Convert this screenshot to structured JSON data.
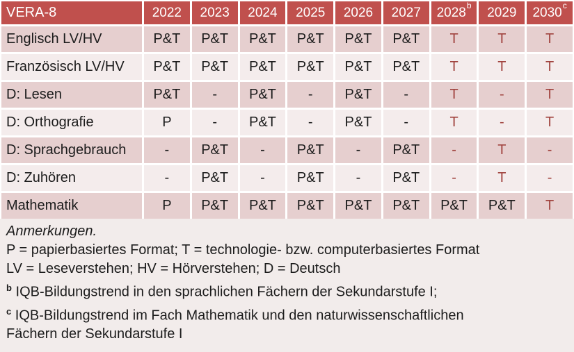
{
  "colors": {
    "header_bg": "#C0504D",
    "header_text": "#FFFFFF",
    "row_band_dark": "#E6CFCF",
    "row_band_light": "#F4ECEC",
    "notes_bg": "#F2ECEB",
    "tech_red_text": "#A0433E",
    "body_text": "#1C1C1C"
  },
  "table": {
    "title": "VERA-8",
    "columns": [
      {
        "label": "2022",
        "sup": ""
      },
      {
        "label": "2023",
        "sup": ""
      },
      {
        "label": "2024",
        "sup": ""
      },
      {
        "label": "2025",
        "sup": ""
      },
      {
        "label": "2026",
        "sup": ""
      },
      {
        "label": "2027",
        "sup": ""
      },
      {
        "label": "2028",
        "sup": "b"
      },
      {
        "label": "2029",
        "sup": ""
      },
      {
        "label": "2030",
        "sup": "c"
      }
    ],
    "rows": [
      {
        "label": "Englisch LV/HV",
        "values": [
          "P&T",
          "P&T",
          "P&T",
          "P&T",
          "P&T",
          "P&T",
          "T",
          "T",
          "T"
        ],
        "red_flags": [
          false,
          false,
          false,
          false,
          false,
          false,
          true,
          true,
          true
        ]
      },
      {
        "label": "Französisch LV/HV",
        "values": [
          "P&T",
          "P&T",
          "P&T",
          "P&T",
          "P&T",
          "P&T",
          "T",
          "T",
          "T"
        ],
        "red_flags": [
          false,
          false,
          false,
          false,
          false,
          false,
          true,
          true,
          true
        ]
      },
      {
        "label": "D: Lesen",
        "values": [
          "P&T",
          "-",
          "P&T",
          "-",
          "P&T",
          "-",
          "T",
          "-",
          "T"
        ],
        "red_flags": [
          false,
          false,
          false,
          false,
          false,
          false,
          true,
          true,
          true
        ]
      },
      {
        "label": "D: Orthografie",
        "values": [
          "P",
          "-",
          "P&T",
          "-",
          "P&T",
          "-",
          "T",
          "-",
          "T"
        ],
        "red_flags": [
          false,
          false,
          false,
          false,
          false,
          false,
          true,
          true,
          true
        ]
      },
      {
        "label": "D: Sprachgebrauch",
        "values": [
          "-",
          "P&T",
          "-",
          "P&T",
          "-",
          "P&T",
          "-",
          "T",
          "-"
        ],
        "red_flags": [
          false,
          false,
          false,
          false,
          false,
          false,
          true,
          true,
          true
        ]
      },
      {
        "label": "D: Zuhören",
        "values": [
          "-",
          "P&T",
          "-",
          "P&T",
          "-",
          "P&T",
          "-",
          "T",
          "-"
        ],
        "red_flags": [
          false,
          false,
          false,
          false,
          false,
          false,
          true,
          true,
          true
        ]
      },
      {
        "label": "Mathematik",
        "values": [
          "P",
          "P&T",
          "P&T",
          "P&T",
          "P&T",
          "P&T",
          "P&T",
          "P&T",
          "T"
        ],
        "red_flags": [
          false,
          false,
          false,
          false,
          false,
          false,
          false,
          false,
          true
        ]
      }
    ]
  },
  "notes": {
    "heading": "Anmerkungen.",
    "lines": [
      {
        "marker": "",
        "text": "P = papierbasiertes Format; T = technologie- bzw. computerbasiertes Format"
      },
      {
        "marker": "",
        "text": "LV = Leseverstehen; HV = Hörverstehen; D = Deutsch"
      },
      {
        "marker": "b",
        "text": "IQB-Bildungstrend in den sprachlichen Fächern der Sekundarstufe I;"
      },
      {
        "marker": "c",
        "text": "IQB-Bildungstrend im Fach Mathematik und den naturwissenschaftlichen"
      },
      {
        "marker": "",
        "text": "Fächern der Sekundarstufe I"
      }
    ]
  }
}
